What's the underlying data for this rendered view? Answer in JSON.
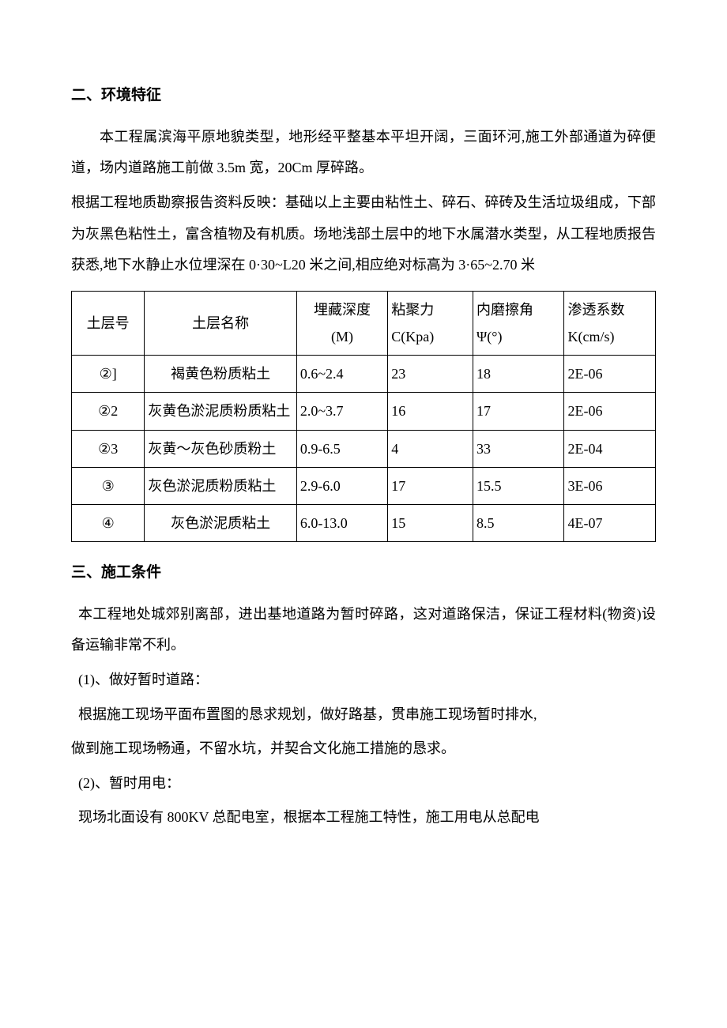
{
  "section2": {
    "heading": "二、环境特征",
    "para1": "本工程属滨海平原地貌类型，地形经平整基本平坦开阔，三面环河,施工外部通道为碎便道，场内道路施工前做 3.5m 宽，20Cm 厚碎路。",
    "para2": "根据工程地质勘察报告资料反映：基础以上主要由粘性土、碎石、碎砖及生活垃圾组成，下部为灰黑色粘性土，富含植物及有机质。场地浅部土层中的地下水属潜水类型，从工程地质报告获悉,地下水静止水位埋深在 0·30~L20 米之间,相应绝对标高为 3·65~2.70 米"
  },
  "table": {
    "headers": {
      "col1": "土层号",
      "col2": "土层名称",
      "col3_line1": "埋藏深度",
      "col3_line2": "(M)",
      "col4_line1": "粘聚力",
      "col4_line2": "C(Kpa)",
      "col5_line1": "内磨擦角",
      "col5_line2": "Ψ(°)",
      "col6_line1": "渗透系数",
      "col6_line2": "K(cm/s)"
    },
    "rows": [
      {
        "id": "②]",
        "name": "褐黄色粉质粘土",
        "depth": "0.6~2.4",
        "c": "23",
        "psi": "18",
        "k": "2E-06"
      },
      {
        "id": "②2",
        "name": "灰黄色淤泥质粉质粘土",
        "depth": "2.0~3.7",
        "c": "16",
        "psi": "17",
        "k": "2E-06"
      },
      {
        "id": "②3",
        "name": "灰黄～灰色砂质粉土",
        "depth": "0.9-6.5",
        "c": "4",
        "psi": "33",
        "k": "2E-04"
      },
      {
        "id": "③",
        "name": "灰色淤泥质粉质粘土",
        "depth": "2.9-6.0",
        "c": "17",
        "psi": "15.5",
        "k": "3E-06"
      },
      {
        "id": "④",
        "name": "灰色淤泥质粘土",
        "depth": "6.0-13.0",
        "c": "15",
        "psi": "8.5",
        "k": "4E-07"
      }
    ],
    "styling": {
      "border_color": "#000000",
      "background_color": "#ffffff",
      "font_size": 18,
      "col_widths_pct": [
        12,
        25,
        15,
        14,
        15,
        15
      ]
    }
  },
  "section3": {
    "heading": "三、施工条件",
    "para1": "本工程地处城郊别离部，进出基地道路为暂时碎路，这对道路保洁，保证工程材料(物资)设备运输非常不利。",
    "item1_title": "(1)、做好暂时道路：",
    "item1_line1": "根据施工现场平面布置图的恳求规划，做好路基，贯串施工现场暂时排水,",
    "item1_line2": "做到施工现场畅通，不留水坑，并契合文化施工措施的恳求。",
    "item2_title": "(2)、暂时用电：",
    "item2_line1": "现场北面设有 800KV 总配电室，根据本工程施工特性，施工用电从总配电"
  },
  "typography": {
    "body_font_size": 18,
    "heading_font_size": 19,
    "line_height": 2.2,
    "text_color": "#000000",
    "background_color": "#ffffff",
    "font_family": "SimSun"
  }
}
